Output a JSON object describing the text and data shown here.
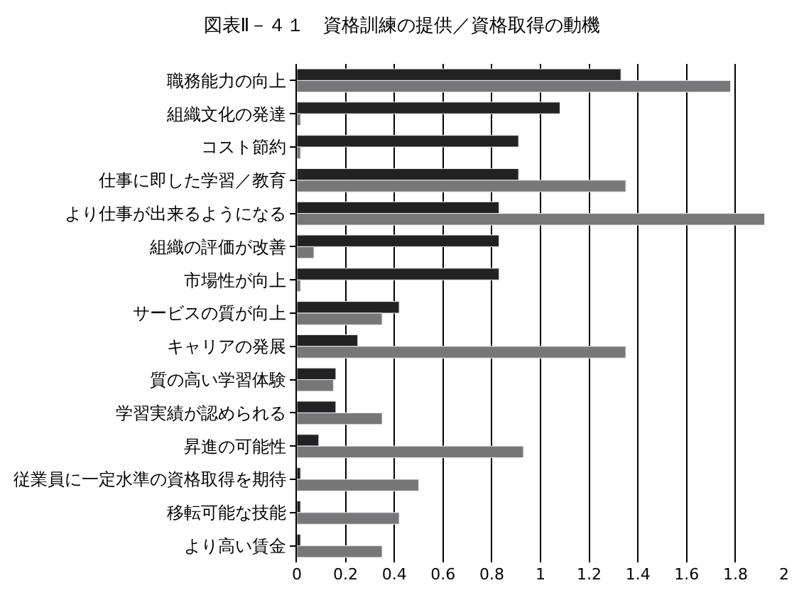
{
  "chart_data": {
    "type": "bar",
    "orientation": "horizontal",
    "title": "図表Ⅱ－４１　資格訓練の提供／資格取得の動機",
    "categories": [
      "職務能力の向上",
      "組織文化の発達",
      "コスト節約",
      "仕事に即した学習／教育",
      "より仕事が出来るようになる",
      "組織の評価が改善",
      "市場性が向上",
      "サービスの質が向上",
      "キャリアの発展",
      "質の高い学習体験",
      "学習実績が認められる",
      "昇進の可能性",
      "従業員に一定水準の資格取得を期待",
      "移転可能な技能",
      "より高い賃金"
    ],
    "series": [
      {
        "color": "#222222",
        "values": [
          1.33,
          1.08,
          0.91,
          0.91,
          0.83,
          0.83,
          0.83,
          0.42,
          0.25,
          0.16,
          0.16,
          0.09,
          0.015,
          0.015,
          0.015
        ]
      },
      {
        "color": "#777777",
        "values": [
          1.78,
          0.015,
          0.015,
          1.35,
          1.92,
          0.07,
          0.015,
          0.35,
          1.35,
          0.15,
          0.35,
          0.93,
          0.5,
          0.42,
          0.35
        ]
      }
    ],
    "xlim": [
      0,
      2
    ],
    "xticks": [
      0,
      0.2,
      0.4,
      0.6,
      0.8,
      1,
      1.2,
      1.4,
      1.6,
      1.8,
      2
    ],
    "grid": "x"
  }
}
